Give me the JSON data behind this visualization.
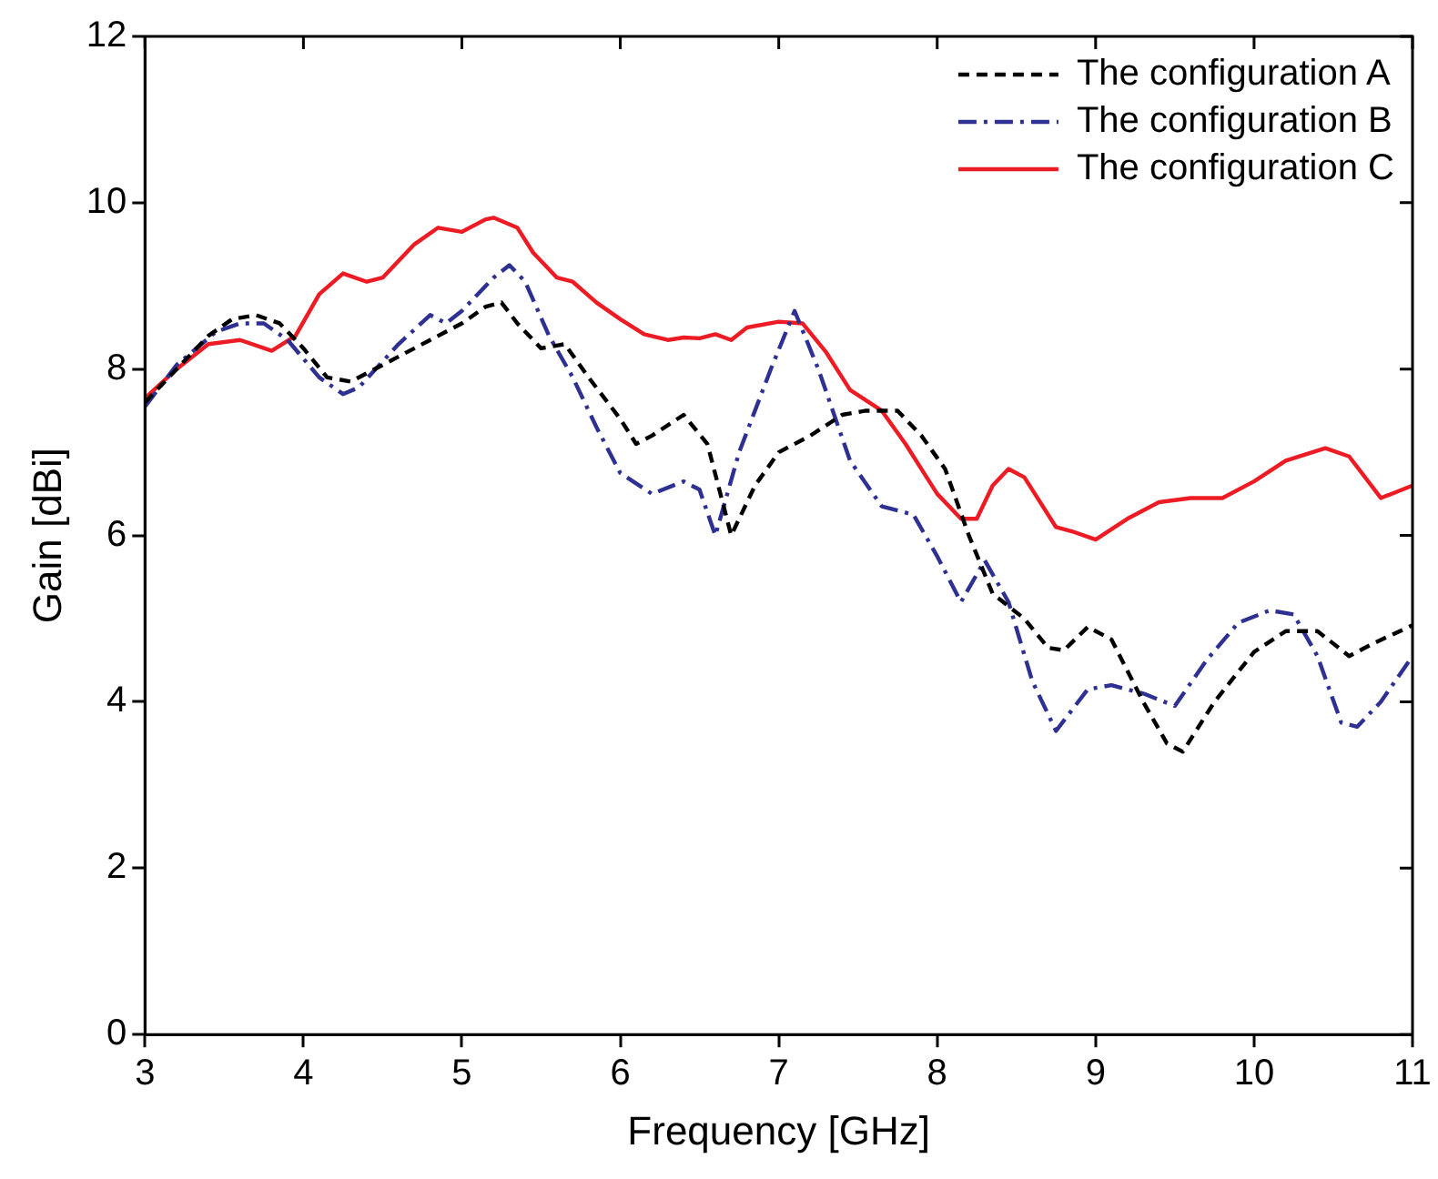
{
  "chart_data": {
    "type": "line",
    "xlabel": "Frequency [GHz]",
    "ylabel": "Gain [dBi]",
    "xlim": [
      3,
      11
    ],
    "xticks": [
      3,
      4,
      5,
      6,
      7,
      8,
      9,
      10,
      11
    ],
    "ylim": [
      0,
      12
    ],
    "yticks": [
      0,
      2,
      4,
      6,
      8,
      10,
      12
    ],
    "grid": false,
    "legend": "top right",
    "marker": "none",
    "series": [
      {
        "name": "The configuration A",
        "color": "#000000",
        "line_style": "dashed",
        "x": [
          3.0,
          3.2,
          3.4,
          3.55,
          3.7,
          3.85,
          4.0,
          4.15,
          4.3,
          4.5,
          4.8,
          5.0,
          5.15,
          5.25,
          5.35,
          5.5,
          5.65,
          5.8,
          6.0,
          6.1,
          6.2,
          6.4,
          6.55,
          6.7,
          6.85,
          7.0,
          7.2,
          7.4,
          7.55,
          7.75,
          7.9,
          8.05,
          8.2,
          8.35,
          8.55,
          8.7,
          8.8,
          8.95,
          9.1,
          9.3,
          9.45,
          9.55,
          9.75,
          10.0,
          10.2,
          10.4,
          10.6,
          10.75,
          11.0
        ],
        "values": [
          7.6,
          8.0,
          8.4,
          8.6,
          8.65,
          8.55,
          8.25,
          7.9,
          7.85,
          8.05,
          8.35,
          8.55,
          8.75,
          8.8,
          8.55,
          8.25,
          8.3,
          7.9,
          7.4,
          7.1,
          7.2,
          7.45,
          7.1,
          6.0,
          6.6,
          7.0,
          7.2,
          7.45,
          7.5,
          7.5,
          7.2,
          6.8,
          6.0,
          5.3,
          5.0,
          4.65,
          4.62,
          4.9,
          4.75,
          4.0,
          3.5,
          3.4,
          4.0,
          4.6,
          4.85,
          4.85,
          4.55,
          4.7,
          4.92
        ]
      },
      {
        "name": "The configuration B",
        "color": "#2e3192",
        "line_style": "dashdot",
        "x": [
          3.0,
          3.2,
          3.45,
          3.6,
          3.75,
          3.9,
          4.1,
          4.25,
          4.35,
          4.6,
          4.8,
          4.9,
          5.0,
          5.2,
          5.3,
          5.4,
          5.55,
          5.7,
          5.85,
          6.0,
          6.2,
          6.4,
          6.5,
          6.6,
          6.75,
          6.95,
          7.1,
          7.25,
          7.45,
          7.65,
          7.85,
          8.0,
          8.15,
          8.3,
          8.45,
          8.6,
          8.75,
          8.95,
          9.1,
          9.3,
          9.5,
          9.7,
          9.9,
          10.1,
          10.25,
          10.4,
          10.55,
          10.65,
          10.8,
          11.0
        ],
        "values": [
          7.55,
          8.05,
          8.45,
          8.55,
          8.55,
          8.35,
          7.9,
          7.7,
          7.78,
          8.3,
          8.65,
          8.55,
          8.7,
          9.1,
          9.25,
          9.05,
          8.4,
          7.9,
          7.3,
          6.75,
          6.5,
          6.65,
          6.55,
          6.0,
          7.0,
          8.0,
          8.7,
          8.0,
          6.9,
          6.35,
          6.25,
          5.75,
          5.2,
          5.7,
          5.2,
          4.25,
          3.65,
          4.15,
          4.2,
          4.1,
          3.95,
          4.5,
          4.95,
          5.1,
          5.05,
          4.55,
          3.75,
          3.7,
          4.0,
          4.55
        ]
      },
      {
        "name": "The configuration C",
        "color": "#ed1c24",
        "line_style": "solid",
        "x": [
          3.0,
          3.2,
          3.4,
          3.6,
          3.8,
          3.95,
          4.1,
          4.25,
          4.4,
          4.5,
          4.7,
          4.85,
          5.0,
          5.15,
          5.2,
          5.35,
          5.45,
          5.6,
          5.7,
          5.85,
          6.0,
          6.15,
          6.3,
          6.4,
          6.5,
          6.6,
          6.7,
          6.8,
          7.0,
          7.15,
          7.3,
          7.45,
          7.65,
          7.8,
          8.0,
          8.15,
          8.25,
          8.35,
          8.45,
          8.55,
          8.75,
          8.85,
          9.0,
          9.2,
          9.4,
          9.6,
          9.8,
          10.0,
          10.2,
          10.45,
          10.6,
          10.8,
          11.0
        ],
        "values": [
          7.65,
          8.0,
          8.3,
          8.35,
          8.22,
          8.4,
          8.9,
          9.15,
          9.05,
          9.1,
          9.5,
          9.7,
          9.65,
          9.8,
          9.82,
          9.7,
          9.4,
          9.1,
          9.05,
          8.8,
          8.6,
          8.42,
          8.35,
          8.38,
          8.37,
          8.42,
          8.35,
          8.5,
          8.57,
          8.55,
          8.2,
          7.75,
          7.5,
          7.1,
          6.5,
          6.2,
          6.2,
          6.6,
          6.8,
          6.7,
          6.1,
          6.05,
          5.95,
          6.2,
          6.4,
          6.45,
          6.45,
          6.65,
          6.9,
          7.05,
          6.95,
          6.45,
          6.6
        ]
      }
    ]
  }
}
